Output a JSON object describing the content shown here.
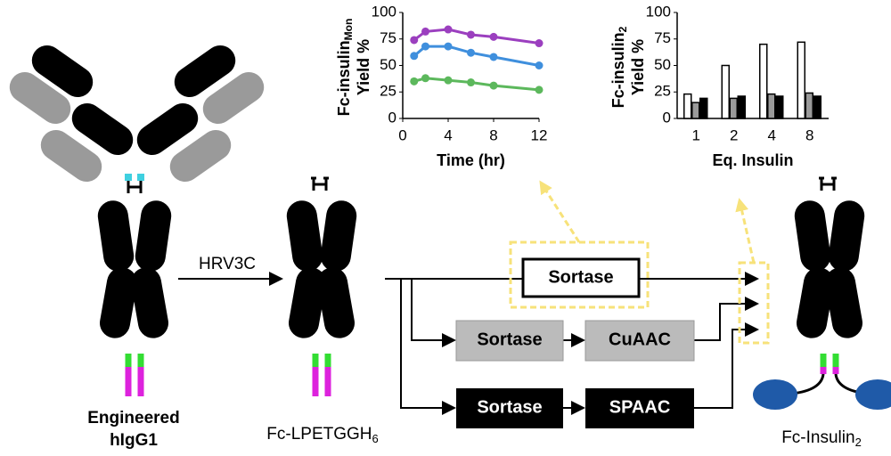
{
  "chart_data": [
    {
      "type": "line",
      "ylabel": [
        "Fc-insulin",
        "Mon",
        "Yield %"
      ],
      "xlabel": "Time (hr)",
      "x": [
        1,
        2,
        4,
        6,
        8,
        12
      ],
      "series": [
        {
          "color": "#9b3fbf",
          "values": [
            74,
            82,
            84,
            79,
            77,
            71
          ]
        },
        {
          "color": "#3f8fdd",
          "values": [
            59,
            68,
            68,
            62,
            58,
            50
          ]
        },
        {
          "color": "#5cb85c",
          "values": [
            35,
            38,
            36,
            34,
            31,
            27
          ]
        }
      ],
      "xlim": [
        0,
        12
      ],
      "xticks": [
        0,
        4,
        8,
        12
      ],
      "ylim": [
        0,
        100
      ],
      "yticks": [
        0,
        25,
        50,
        75,
        100
      ]
    },
    {
      "type": "bar",
      "ylabel": [
        "Fc-insulin",
        "2",
        "Yield %"
      ],
      "xlabel": "Eq. Insulin",
      "categories": [
        "1",
        "2",
        "4",
        "8"
      ],
      "series": [
        {
          "color": "#ffffff",
          "values": [
            23,
            50,
            70,
            72
          ]
        },
        {
          "color": "#9a9a9a",
          "values": [
            15,
            19,
            23,
            24
          ]
        },
        {
          "color": "#000000",
          "values": [
            19,
            21,
            21,
            21
          ]
        }
      ],
      "ylim": [
        0,
        100
      ],
      "yticks": [
        0,
        25,
        50,
        75,
        100
      ]
    }
  ],
  "diagram": {
    "left_label": [
      "Engineered",
      "hIgG1"
    ],
    "enzyme": "HRV3C",
    "middle_label": [
      "Fc-LPETGGH",
      "6"
    ],
    "boxes": [
      "Sortase",
      "Sortase",
      "CuAAC",
      "Sortase",
      "SPAAC"
    ],
    "right_label": [
      "Fc-Insulin",
      "2"
    ]
  }
}
